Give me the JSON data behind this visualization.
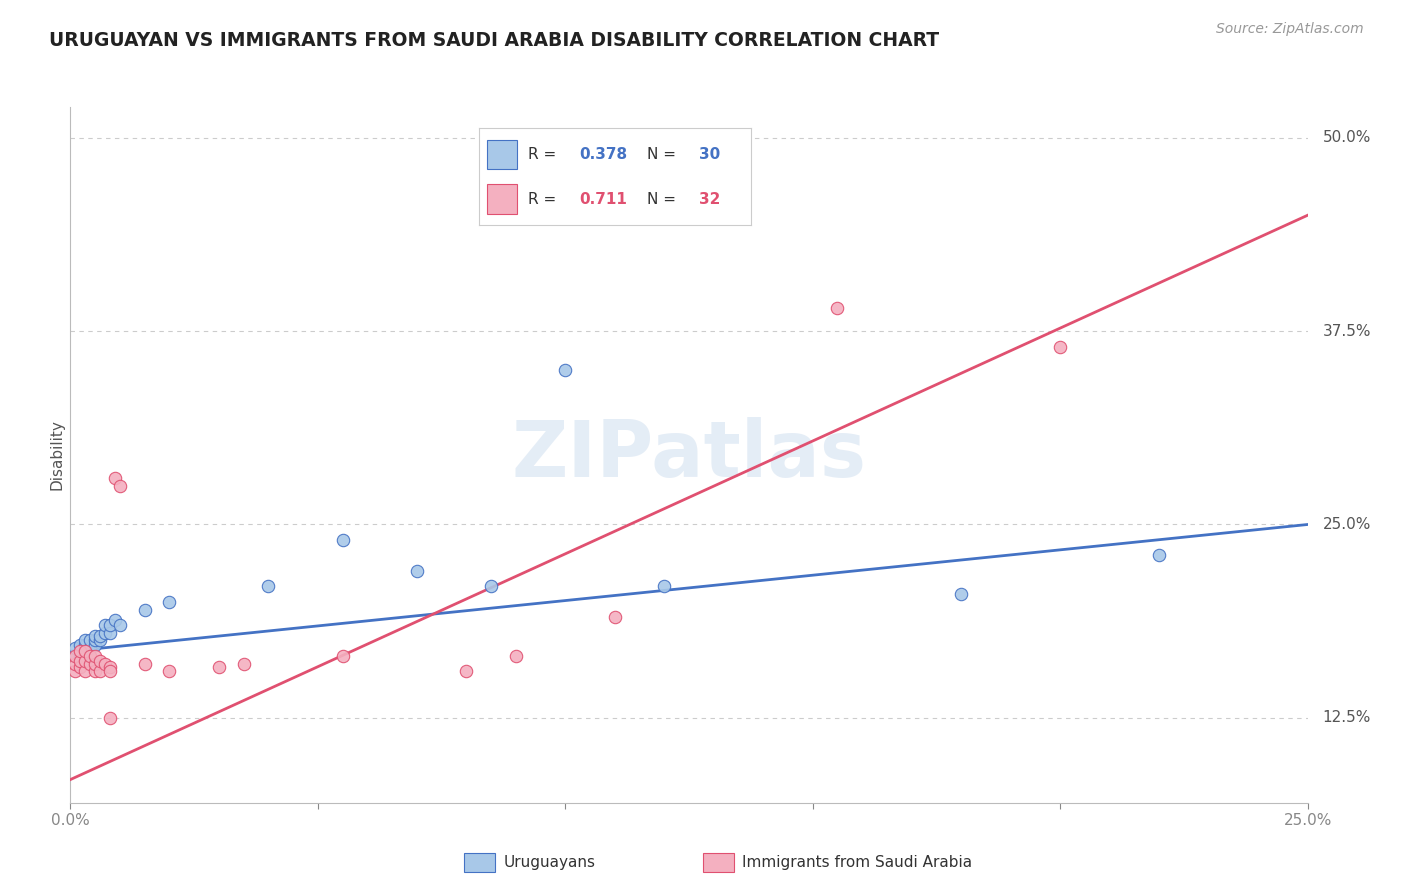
{
  "title": "URUGUAYAN VS IMMIGRANTS FROM SAUDI ARABIA DISABILITY CORRELATION CHART",
  "source": "Source: ZipAtlas.com",
  "ylabel": "Disability",
  "xlim": [
    0.0,
    0.25
  ],
  "ylim": [
    0.07,
    0.52
  ],
  "yticks_right": [
    0.125,
    0.25,
    0.375,
    0.5
  ],
  "ytick_right_labels": [
    "12.5%",
    "25.0%",
    "37.5%",
    "50.0%"
  ],
  "uruguayan_color": "#a8c8e8",
  "saudi_color": "#f4b0c0",
  "uruguayan_line_color": "#4472c4",
  "saudi_line_color": "#e05070",
  "legend_R1": "0.378",
  "legend_N1": "30",
  "legend_R2": "0.711",
  "legend_N2": "32",
  "legend_label1": "Uruguayans",
  "legend_label2": "Immigrants from Saudi Arabia",
  "watermark": "ZIPatlas",
  "uruguayan_x": [
    0.001,
    0.001,
    0.002,
    0.002,
    0.003,
    0.003,
    0.003,
    0.004,
    0.004,
    0.005,
    0.005,
    0.005,
    0.006,
    0.006,
    0.007,
    0.007,
    0.008,
    0.008,
    0.009,
    0.01,
    0.015,
    0.02,
    0.04,
    0.055,
    0.07,
    0.085,
    0.1,
    0.12,
    0.18,
    0.22
  ],
  "uruguayan_y": [
    0.165,
    0.17,
    0.165,
    0.172,
    0.168,
    0.172,
    0.175,
    0.17,
    0.175,
    0.172,
    0.175,
    0.178,
    0.175,
    0.178,
    0.18,
    0.185,
    0.18,
    0.185,
    0.188,
    0.185,
    0.195,
    0.2,
    0.21,
    0.24,
    0.22,
    0.21,
    0.35,
    0.21,
    0.205,
    0.23
  ],
  "saudi_x": [
    0.001,
    0.001,
    0.001,
    0.002,
    0.002,
    0.002,
    0.003,
    0.003,
    0.003,
    0.004,
    0.004,
    0.005,
    0.005,
    0.005,
    0.006,
    0.006,
    0.007,
    0.008,
    0.008,
    0.008,
    0.009,
    0.01,
    0.015,
    0.02,
    0.03,
    0.035,
    0.055,
    0.08,
    0.09,
    0.11,
    0.155,
    0.2
  ],
  "saudi_y": [
    0.155,
    0.16,
    0.165,
    0.158,
    0.162,
    0.168,
    0.155,
    0.162,
    0.168,
    0.16,
    0.165,
    0.155,
    0.16,
    0.165,
    0.155,
    0.162,
    0.16,
    0.158,
    0.155,
    0.125,
    0.28,
    0.275,
    0.16,
    0.155,
    0.158,
    0.16,
    0.165,
    0.155,
    0.165,
    0.19,
    0.39,
    0.365
  ],
  "blue_line_x": [
    0.0,
    0.25
  ],
  "blue_line_y": [
    0.168,
    0.25
  ],
  "pink_line_x": [
    0.0,
    0.25
  ],
  "pink_line_y": [
    0.085,
    0.45
  ]
}
